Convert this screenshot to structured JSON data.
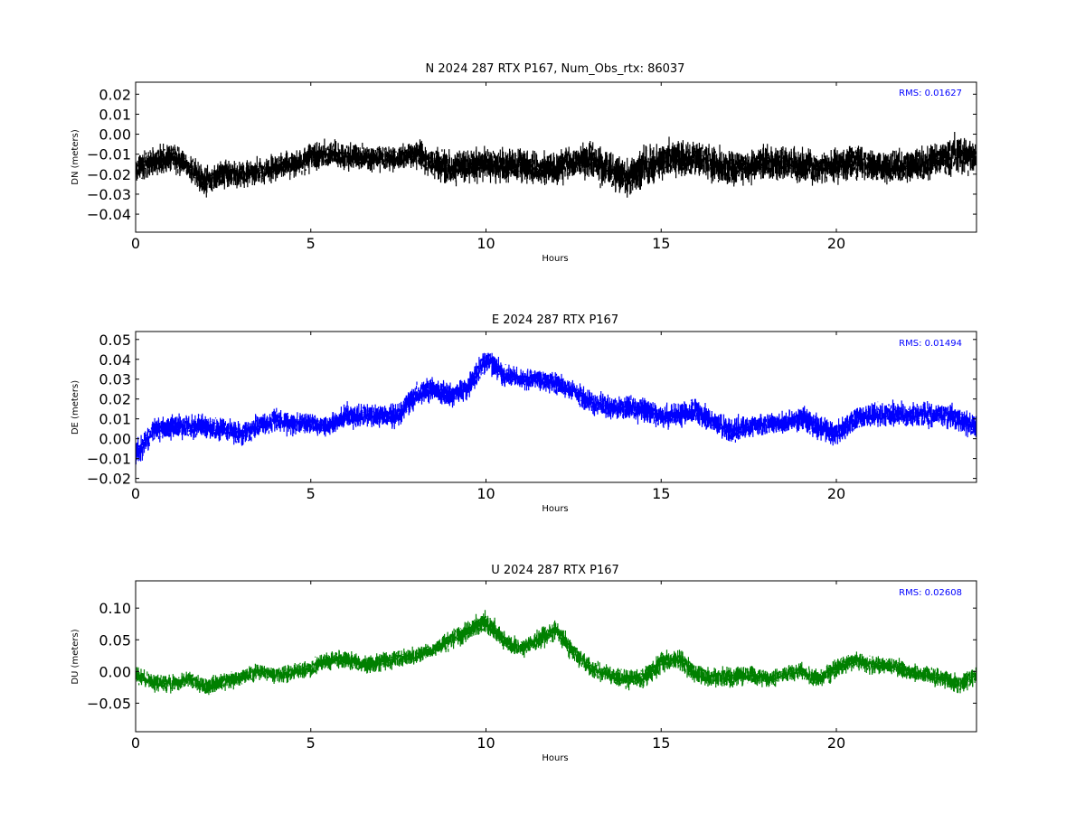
{
  "chart_data": [
    {
      "type": "scatter",
      "title": "N 2024 287 RTX  P167, Num_Obs_rtx: 86037",
      "xlabel": "Hours",
      "ylabel": "DN (meters)",
      "xlim": [
        0,
        24
      ],
      "ylim": [
        -0.049,
        0.026
      ],
      "xticks": [
        0,
        5,
        10,
        15,
        20
      ],
      "xtick_labels": [
        "0",
        "5",
        "10",
        "15",
        "20"
      ],
      "yticks": [
        -0.04,
        -0.03,
        -0.02,
        -0.01,
        0.0,
        0.01,
        0.02
      ],
      "ytick_labels": [
        "−0.04",
        "−0.03",
        "−0.02",
        "−0.01",
        "0.00",
        "0.01",
        "0.02"
      ],
      "annotation": "RMS:  0.01627",
      "annotation_color": "#0000ff",
      "series_color": "#000000",
      "grid": false,
      "series": [
        {
          "x": [
            0,
            0.5,
            1,
            1.5,
            2,
            2.5,
            3,
            3.5,
            4,
            4.5,
            5,
            5.5,
            6,
            6.5,
            7,
            7.5,
            8,
            8.5,
            9,
            9.5,
            10,
            10.5,
            11,
            11.5,
            12,
            12.5,
            13,
            13.5,
            14,
            14.5,
            15,
            15.5,
            16,
            16.5,
            17,
            17.5,
            18,
            18.5,
            19,
            19.5,
            20,
            20.5,
            21,
            21.5,
            22,
            22.5,
            23,
            23.5,
            24
          ],
          "y": [
            -0.018,
            -0.014,
            -0.01,
            -0.016,
            -0.024,
            -0.02,
            -0.02,
            -0.019,
            -0.016,
            -0.015,
            -0.012,
            -0.01,
            -0.011,
            -0.012,
            -0.012,
            -0.012,
            -0.01,
            -0.014,
            -0.016,
            -0.016,
            -0.015,
            -0.016,
            -0.016,
            -0.018,
            -0.016,
            -0.015,
            -0.013,
            -0.018,
            -0.022,
            -0.016,
            -0.013,
            -0.012,
            -0.012,
            -0.015,
            -0.017,
            -0.016,
            -0.014,
            -0.014,
            -0.016,
            -0.017,
            -0.016,
            -0.014,
            -0.015,
            -0.017,
            -0.016,
            -0.015,
            -0.012,
            -0.01,
            -0.012
          ],
          "spread": [
            0.009,
            0.01,
            0.01,
            0.009,
            0.01,
            0.009,
            0.009,
            0.009,
            0.009,
            0.009,
            0.009,
            0.009,
            0.009,
            0.009,
            0.008,
            0.008,
            0.009,
            0.011,
            0.012,
            0.011,
            0.011,
            0.011,
            0.011,
            0.011,
            0.011,
            0.011,
            0.013,
            0.013,
            0.012,
            0.013,
            0.012,
            0.012,
            0.012,
            0.012,
            0.012,
            0.011,
            0.011,
            0.011,
            0.011,
            0.011,
            0.011,
            0.011,
            0.011,
            0.011,
            0.011,
            0.011,
            0.012,
            0.012,
            0.011
          ]
        }
      ]
    },
    {
      "type": "scatter",
      "title": "E 2024 287 RTX  P167",
      "xlabel": "Hours",
      "ylabel": "DE (meters)",
      "xlim": [
        0,
        24
      ],
      "ylim": [
        -0.022,
        0.054
      ],
      "xticks": [
        0,
        5,
        10,
        15,
        20
      ],
      "xtick_labels": [
        "0",
        "5",
        "10",
        "15",
        "20"
      ],
      "yticks": [
        -0.02,
        -0.01,
        0.0,
        0.01,
        0.02,
        0.03,
        0.04,
        0.05
      ],
      "ytick_labels": [
        "−0.02",
        "−0.01",
        "0.00",
        "0.01",
        "0.02",
        "0.03",
        "0.04",
        "0.05"
      ],
      "annotation": "RMS:  0.01494",
      "annotation_color": "#0000ff",
      "series_color": "#0000ff",
      "grid": false,
      "series": [
        {
          "x": [
            0,
            0.5,
            1,
            1.5,
            2,
            2.5,
            3,
            3.5,
            4,
            4.5,
            5,
            5.5,
            6,
            6.5,
            7,
            7.5,
            8,
            8.5,
            9,
            9.5,
            10,
            10.5,
            11,
            11.5,
            12,
            12.5,
            13,
            13.5,
            14,
            14.5,
            15,
            15.5,
            16,
            16.5,
            17,
            17.5,
            18,
            18.5,
            19,
            19.5,
            20,
            20.5,
            21,
            21.5,
            22,
            22.5,
            23,
            23.5,
            24
          ],
          "y": [
            -0.008,
            0.004,
            0.006,
            0.006,
            0.006,
            0.005,
            0.002,
            0.006,
            0.01,
            0.007,
            0.008,
            0.006,
            0.011,
            0.012,
            0.011,
            0.012,
            0.022,
            0.025,
            0.022,
            0.026,
            0.04,
            0.032,
            0.03,
            0.03,
            0.028,
            0.024,
            0.018,
            0.016,
            0.016,
            0.014,
            0.011,
            0.012,
            0.014,
            0.008,
            0.004,
            0.005,
            0.008,
            0.008,
            0.01,
            0.006,
            0.002,
            0.01,
            0.012,
            0.012,
            0.012,
            0.012,
            0.012,
            0.01,
            0.006
          ],
          "spread": [
            0.009,
            0.008,
            0.008,
            0.008,
            0.008,
            0.008,
            0.008,
            0.008,
            0.008,
            0.007,
            0.007,
            0.007,
            0.008,
            0.008,
            0.008,
            0.008,
            0.008,
            0.008,
            0.008,
            0.008,
            0.008,
            0.008,
            0.007,
            0.007,
            0.007,
            0.007,
            0.008,
            0.008,
            0.008,
            0.008,
            0.008,
            0.008,
            0.008,
            0.008,
            0.009,
            0.008,
            0.007,
            0.007,
            0.008,
            0.008,
            0.008,
            0.008,
            0.008,
            0.008,
            0.008,
            0.008,
            0.008,
            0.008,
            0.008
          ]
        }
      ]
    },
    {
      "type": "scatter",
      "title": "U 2024 287 RTX  P167",
      "xlabel": "Hours",
      "ylabel": "DU (meters)",
      "xlim": [
        0,
        24
      ],
      "ylim": [
        -0.095,
        0.143
      ],
      "xticks": [
        0,
        5,
        10,
        15,
        20
      ],
      "xtick_labels": [
        "0",
        "5",
        "10",
        "15",
        "20"
      ],
      "yticks": [
        -0.05,
        0.0,
        0.05,
        0.1
      ],
      "ytick_labels": [
        "−0.05",
        "0.00",
        "0.05",
        "0.10"
      ],
      "annotation": "RMS:  0.02608",
      "annotation_color": "#0000ff",
      "series_color": "#008000",
      "grid": false,
      "series": [
        {
          "x": [
            0,
            0.5,
            1,
            1.5,
            2,
            2.5,
            3,
            3.5,
            4,
            4.5,
            5,
            5.5,
            6,
            6.5,
            7,
            7.5,
            8,
            8.5,
            9,
            9.5,
            10,
            10.5,
            11,
            11.5,
            12,
            12.5,
            13,
            13.5,
            14,
            14.5,
            15,
            15.5,
            16,
            16.5,
            17,
            17.5,
            18,
            18.5,
            19,
            19.5,
            20,
            20.5,
            21,
            21.5,
            22,
            22.5,
            23,
            23.5,
            24
          ],
          "y": [
            -0.005,
            -0.018,
            -0.02,
            -0.012,
            -0.025,
            -0.015,
            -0.01,
            0.0,
            -0.005,
            -0.002,
            0.005,
            0.018,
            0.02,
            0.01,
            0.015,
            0.02,
            0.025,
            0.035,
            0.05,
            0.065,
            0.078,
            0.05,
            0.035,
            0.05,
            0.065,
            0.03,
            0.005,
            -0.005,
            -0.012,
            -0.01,
            0.015,
            0.02,
            -0.005,
            -0.01,
            -0.01,
            -0.005,
            -0.012,
            -0.005,
            0.0,
            -0.012,
            0.005,
            0.018,
            0.01,
            0.01,
            0.0,
            -0.005,
            -0.01,
            -0.02,
            -0.005
          ],
          "spread": [
            0.018,
            0.018,
            0.018,
            0.018,
            0.018,
            0.018,
            0.018,
            0.018,
            0.018,
            0.018,
            0.018,
            0.018,
            0.018,
            0.018,
            0.018,
            0.018,
            0.018,
            0.018,
            0.02,
            0.022,
            0.024,
            0.02,
            0.018,
            0.02,
            0.022,
            0.02,
            0.018,
            0.02,
            0.02,
            0.02,
            0.022,
            0.022,
            0.02,
            0.02,
            0.022,
            0.02,
            0.018,
            0.018,
            0.018,
            0.018,
            0.02,
            0.018,
            0.018,
            0.018,
            0.018,
            0.018,
            0.018,
            0.02,
            0.018
          ]
        }
      ]
    }
  ]
}
